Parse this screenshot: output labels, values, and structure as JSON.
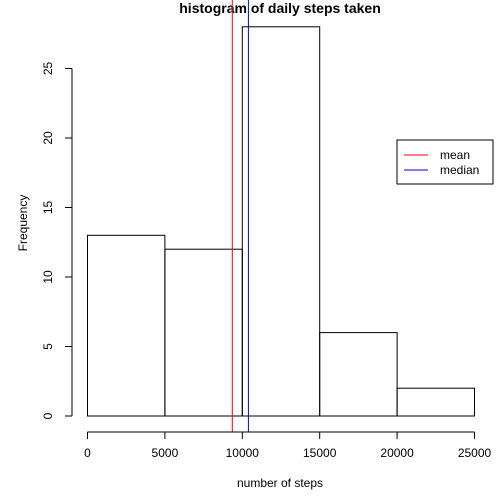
{
  "chart_data": {
    "type": "bar",
    "title": "histogram of daily steps taken",
    "xlabel": "number of steps",
    "ylabel": "Frequency",
    "xlim": [
      0,
      25000
    ],
    "ylim": [
      0,
      28
    ],
    "bins": [
      {
        "start": 0,
        "end": 5000,
        "count": 13
      },
      {
        "start": 5000,
        "end": 10000,
        "count": 12
      },
      {
        "start": 10000,
        "end": 15000,
        "count": 28
      },
      {
        "start": 15000,
        "end": 20000,
        "count": 6
      },
      {
        "start": 20000,
        "end": 25000,
        "count": 2
      }
    ],
    "x_ticks": [
      0,
      5000,
      10000,
      15000,
      20000,
      25000
    ],
    "y_ticks": [
      0,
      5,
      10,
      15,
      20,
      25
    ],
    "reference_lines": [
      {
        "name": "mean",
        "value": 9354,
        "color": "#ff0000"
      },
      {
        "name": "median",
        "value": 10395,
        "color": "#0000ff"
      }
    ],
    "legend": {
      "position": "right",
      "entries": [
        "mean",
        "median"
      ]
    },
    "grid": false
  }
}
